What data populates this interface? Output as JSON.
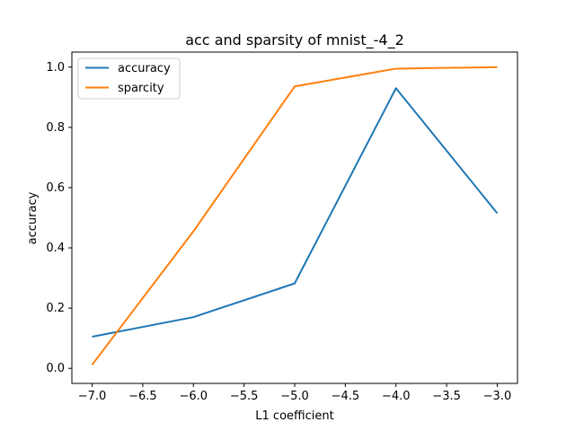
{
  "chart_data": {
    "type": "line",
    "title": "acc and sparsity of mnist_-4_2",
    "xlabel": "L1 coefficient",
    "ylabel": "accuracy",
    "x": [
      -7.0,
      -6.0,
      -5.0,
      -4.0,
      -3.0
    ],
    "xlim": [
      -7.2,
      -2.8
    ],
    "ylim": [
      -0.05,
      1.05
    ],
    "xticks": [
      -7.0,
      -6.5,
      -6.0,
      -5.5,
      -5.0,
      -4.5,
      -4.0,
      -3.5,
      -3.0
    ],
    "xtick_labels": [
      "−7.0",
      "−6.5",
      "−6.0",
      "−5.5",
      "−5.0",
      "−4.5",
      "−4.0",
      "−3.5",
      "−3.0"
    ],
    "yticks": [
      0.0,
      0.2,
      0.4,
      0.6,
      0.8,
      1.0
    ],
    "ytick_labels": [
      "0.0",
      "0.2",
      "0.4",
      "0.6",
      "0.8",
      "1.0"
    ],
    "grid": false,
    "legend_position": "top-left",
    "series": [
      {
        "name": "accuracy",
        "color": "#1f77b4",
        "values": [
          0.105,
          0.17,
          0.282,
          0.93,
          0.515
        ]
      },
      {
        "name": "sparcity",
        "color": "#ff7f0e",
        "values": [
          0.012,
          0.455,
          0.936,
          0.995,
          1.0
        ]
      }
    ]
  }
}
